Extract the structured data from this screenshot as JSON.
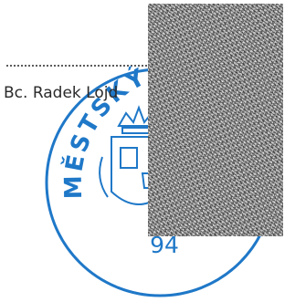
{
  "signature_line": {
    "name": "Bc. Radek Lojd"
  },
  "stamp": {
    "arc_text": "MĚSTSKÝ Ú",
    "number": "94",
    "ink_color": "#1f78c8"
  },
  "redaction": {
    "fill": "noise"
  }
}
